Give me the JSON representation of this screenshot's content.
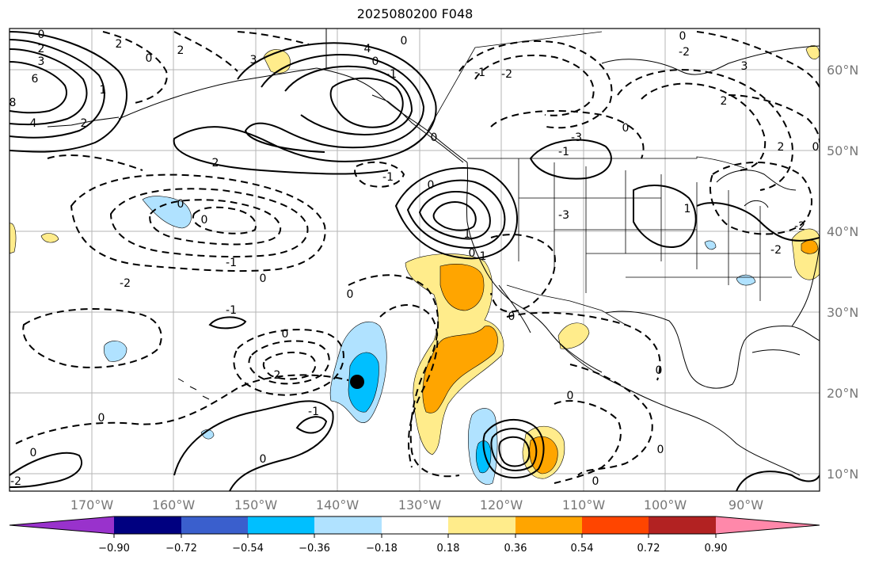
{
  "title": "2025080200 F048",
  "map": {
    "lon_labels": [
      "170°W",
      "160°W",
      "150°W",
      "140°W",
      "130°W",
      "120°W",
      "110°W",
      "100°W",
      "90°W"
    ],
    "lat_labels": [
      "60°N",
      "50°N",
      "40°N",
      "30°N",
      "20°N",
      "10°N"
    ]
  },
  "colorbar": {
    "labels": [
      "−0.90",
      "−0.72",
      "−0.54",
      "−0.36",
      "−0.18",
      "0.18",
      "0.36",
      "0.54",
      "0.72",
      "0.90"
    ],
    "colors": [
      "#9932cc",
      "#000080",
      "#3a5fcd",
      "#00bfff",
      "#b0e2ff",
      "#ffffff",
      "#ffec8b",
      "#ffa500",
      "#ff4500",
      "#b22222",
      "#ff88aa"
    ]
  },
  "contour_labels": [
    "0",
    "2",
    "3",
    "6",
    "8",
    "4",
    "2",
    "1",
    "2",
    "0",
    "2",
    "3",
    "4",
    "0",
    "-1",
    "0",
    "0",
    "-1",
    "-2",
    "-1",
    "-3",
    "0",
    "-2",
    "0",
    "2",
    "3",
    "2",
    "0",
    "2",
    "-1",
    "0",
    "0",
    "0",
    "-1",
    "-2",
    "0",
    "-1",
    "0",
    "2",
    "0",
    "-1",
    "0",
    "0",
    "-2",
    "0",
    "1",
    "0",
    "0",
    "0",
    "0",
    "0",
    "1",
    "-2",
    "-2",
    "1",
    "-3",
    "0"
  ]
}
